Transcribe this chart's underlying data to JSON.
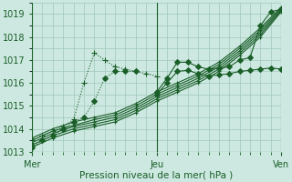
{
  "xlabel": "Pression niveau de la mer( hPa )",
  "bg_color": "#cce8e0",
  "grid_color": "#a0c8bc",
  "line_color": "#1a5e28",
  "xlim": [
    0,
    72
  ],
  "ylim": [
    1013.0,
    1019.5
  ],
  "yticks": [
    1013,
    1014,
    1015,
    1016,
    1017,
    1018,
    1019
  ],
  "xtick_labels": [
    "Mer",
    "Jeu",
    "Ven"
  ],
  "xtick_pos": [
    0,
    36,
    72
  ],
  "vlines": [
    0,
    36,
    72
  ],
  "series": [
    {
      "x": [
        0,
        3,
        6,
        9,
        12,
        15,
        18,
        21,
        24,
        27,
        30
      ],
      "y": [
        1013.2,
        1013.5,
        1013.7,
        1014.0,
        1014.3,
        1014.5,
        1015.2,
        1016.2,
        1016.5,
        1016.5,
        1016.5
      ],
      "style": ":",
      "marker": "D",
      "ms": 3
    },
    {
      "x": [
        0,
        3,
        6,
        9,
        12,
        15,
        18,
        21,
        24,
        27,
        30,
        33,
        36
      ],
      "y": [
        1013.5,
        1013.7,
        1013.9,
        1014.1,
        1014.4,
        1016.0,
        1017.3,
        1017.0,
        1016.7,
        1016.6,
        1016.5,
        1016.4,
        1016.3
      ],
      "style": ":",
      "marker": "+",
      "ms": 4
    },
    {
      "x": [
        0,
        6,
        12,
        18,
        24,
        30,
        36,
        42,
        48,
        54,
        60,
        66,
        72
      ],
      "y": [
        1013.2,
        1013.6,
        1013.9,
        1014.1,
        1014.3,
        1014.7,
        1015.2,
        1015.6,
        1016.0,
        1016.5,
        1017.2,
        1018.0,
        1019.1
      ],
      "style": "-",
      "marker": "+",
      "ms": 3
    },
    {
      "x": [
        0,
        6,
        12,
        18,
        24,
        30,
        36,
        42,
        48,
        54,
        60,
        66,
        72
      ],
      "y": [
        1013.3,
        1013.7,
        1014.0,
        1014.2,
        1014.4,
        1014.8,
        1015.3,
        1015.7,
        1016.1,
        1016.6,
        1017.3,
        1018.1,
        1019.15
      ],
      "style": "-",
      "marker": "+",
      "ms": 3
    },
    {
      "x": [
        0,
        6,
        12,
        18,
        24,
        30,
        36,
        42,
        48,
        54,
        60,
        66,
        72
      ],
      "y": [
        1013.4,
        1013.8,
        1014.1,
        1014.3,
        1014.5,
        1014.9,
        1015.4,
        1015.8,
        1016.2,
        1016.7,
        1017.4,
        1018.2,
        1019.2
      ],
      "style": "-",
      "marker": "+",
      "ms": 3
    },
    {
      "x": [
        0,
        6,
        12,
        18,
        24,
        30,
        36,
        42,
        48,
        54,
        60,
        66,
        72
      ],
      "y": [
        1013.5,
        1013.9,
        1014.15,
        1014.4,
        1014.6,
        1015.0,
        1015.5,
        1015.9,
        1016.3,
        1016.8,
        1017.5,
        1018.3,
        1019.25
      ],
      "style": "-",
      "marker": "+",
      "ms": 3
    },
    {
      "x": [
        0,
        6,
        12,
        18,
        24,
        30,
        36,
        42,
        48,
        54,
        60,
        66,
        72
      ],
      "y": [
        1013.6,
        1014.0,
        1014.3,
        1014.5,
        1014.7,
        1015.1,
        1015.6,
        1016.0,
        1016.4,
        1016.9,
        1017.6,
        1018.4,
        1019.3
      ],
      "style": "-",
      "marker": "+",
      "ms": 3
    },
    {
      "x": [
        36,
        39,
        42,
        45,
        48,
        51,
        54,
        57,
        60,
        63,
        66,
        69,
        72
      ],
      "y": [
        1015.5,
        1016.0,
        1016.5,
        1016.55,
        1016.4,
        1016.3,
        1016.35,
        1016.4,
        1016.5,
        1016.55,
        1016.6,
        1016.65,
        1016.6
      ],
      "style": "-",
      "marker": "D",
      "ms": 3
    },
    {
      "x": [
        36,
        39,
        42,
        45,
        48,
        51,
        54,
        57,
        60,
        63,
        66,
        69,
        72
      ],
      "y": [
        1015.6,
        1016.2,
        1016.9,
        1016.9,
        1016.7,
        1016.6,
        1016.65,
        1016.7,
        1017.0,
        1017.1,
        1018.5,
        1019.1,
        1019.2
      ],
      "style": "-",
      "marker": "D",
      "ms": 3
    }
  ]
}
